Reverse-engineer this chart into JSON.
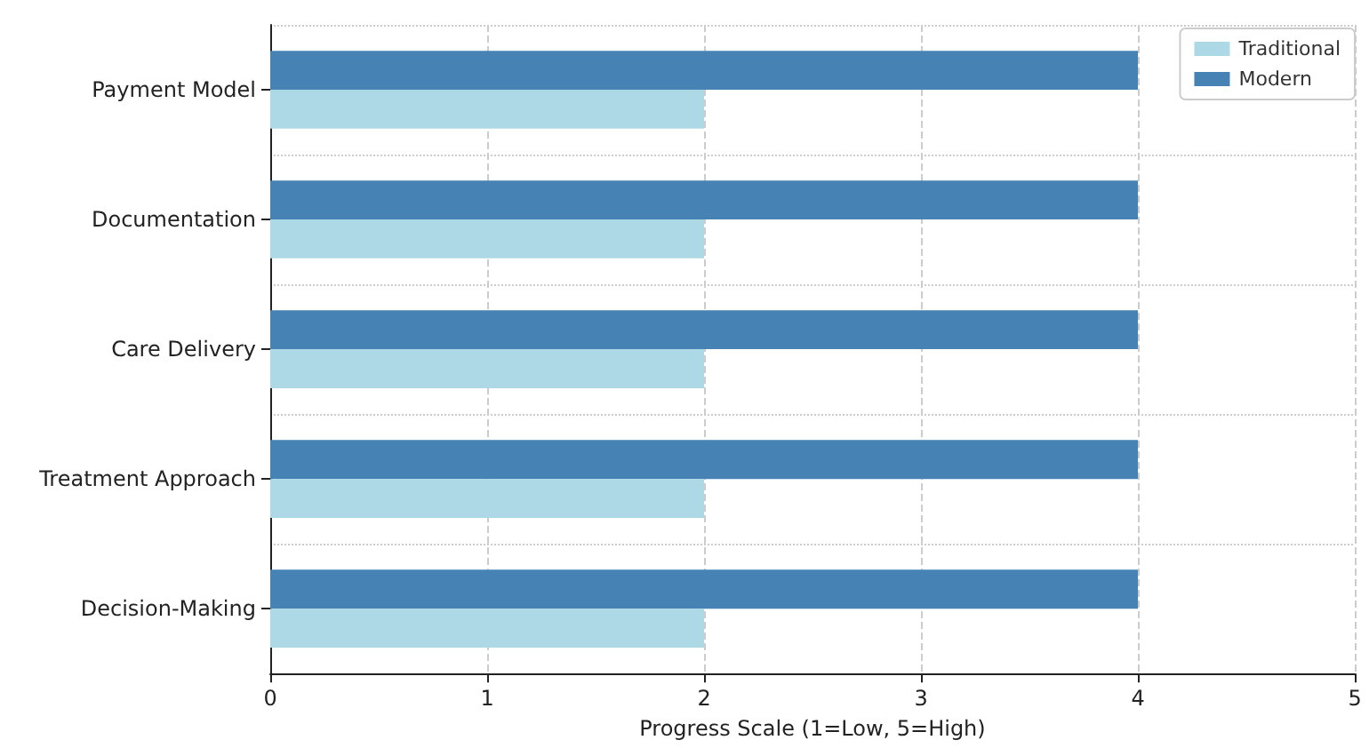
{
  "chart_data": {
    "type": "bar",
    "orientation": "horizontal",
    "xlabel": "Progress Scale (1=Low, 5=High)",
    "categories": [
      "Payment Model",
      "Documentation",
      "Care Delivery",
      "Treatment Approach",
      "Decision-Making"
    ],
    "series": [
      {
        "name": "Traditional",
        "color": "#add8e6",
        "values": [
          2,
          2,
          2,
          2,
          2
        ]
      },
      {
        "name": "Modern",
        "color": "#4682b4",
        "values": [
          4,
          4,
          4,
          4,
          4
        ]
      }
    ],
    "xlim": [
      0,
      5
    ],
    "xticks": [
      0,
      1,
      2,
      3,
      4,
      5
    ],
    "grid": true,
    "legend": "top right"
  }
}
